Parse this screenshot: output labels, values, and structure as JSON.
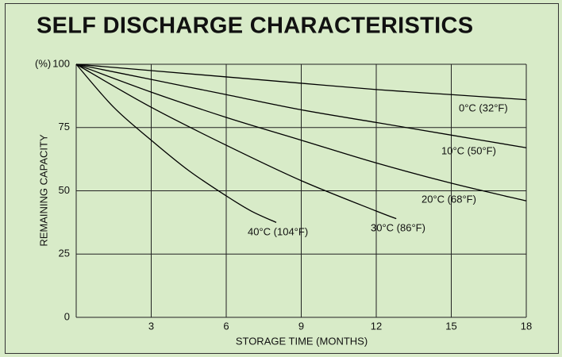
{
  "chart_data": {
    "type": "line",
    "title": "SELF DISCHARGE CHARACTERISTICS",
    "x_label": "STORAGE TIME (MONTHS)",
    "y_label": "REMAINING CAPACITY",
    "y_unit": "(%)",
    "xlim": [
      0,
      18
    ],
    "ylim": [
      0,
      100
    ],
    "xticks": [
      3,
      6,
      9,
      12,
      15,
      18
    ],
    "yticks": [
      0,
      25,
      50,
      75,
      100
    ],
    "grid": true,
    "series": [
      {
        "name": "0°C (32°F)",
        "color": "#000000",
        "x": [
          0,
          3,
          6,
          9,
          12,
          15,
          18
        ],
        "values": [
          100,
          97.5,
          95,
          92.5,
          90,
          88,
          86
        ]
      },
      {
        "name": "10°C (50°F)",
        "color": "#000000",
        "x": [
          0,
          3,
          6,
          9,
          12,
          15,
          18
        ],
        "values": [
          100,
          94,
          88,
          82,
          77,
          72,
          67
        ]
      },
      {
        "name": "20°C (68°F)",
        "color": "#000000",
        "x": [
          0,
          3,
          6,
          9,
          12,
          15,
          18
        ],
        "values": [
          100,
          89,
          79,
          70,
          61,
          53,
          46
        ]
      },
      {
        "name": "30°C (86°F)",
        "color": "#000000",
        "x": [
          0,
          3,
          6,
          9,
          12,
          12.8
        ],
        "values": [
          100,
          83,
          68,
          54,
          42,
          39
        ]
      },
      {
        "name": "40°C (104°F)",
        "color": "#000000",
        "x": [
          0,
          1.5,
          3,
          4.5,
          6,
          7,
          8
        ],
        "values": [
          100,
          83,
          70,
          58,
          48,
          42,
          37.5
        ]
      }
    ]
  }
}
